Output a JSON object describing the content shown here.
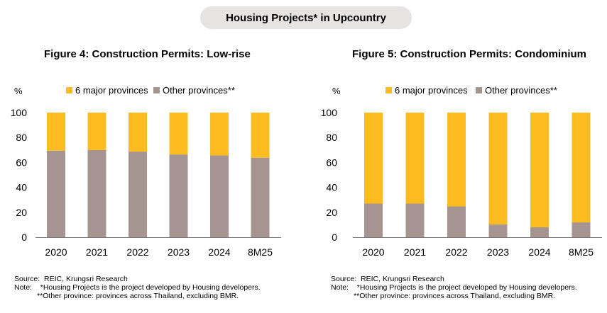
{
  "banner": "Housing Projects* in Upcountry",
  "chart_data": [
    {
      "type": "bar",
      "stacked": true,
      "title": "Figure 4: Construction Permits: Low-rise",
      "ylabel": "%",
      "ylim": [
        0,
        100
      ],
      "yticks": [
        "0",
        "20",
        "40",
        "60",
        "80",
        "100"
      ],
      "categories": [
        "2020",
        "2021",
        "2022",
        "2023",
        "2024",
        "8M25"
      ],
      "legend_position": "top",
      "series": [
        {
          "name": "6 major provinces",
          "color": "#fcbc1f",
          "values": [
            30.5,
            30,
            31.3,
            33.6,
            34.3,
            36.2
          ]
        },
        {
          "name": "Other provinces**",
          "color": "#a69490",
          "values": [
            69.5,
            70,
            68.7,
            66.4,
            65.7,
            63.8
          ]
        }
      ],
      "source": "Source:  REIC, Krungsri Research",
      "note1": "Note:    *Housing Projects is the project developed by Housing developers.",
      "note2": "           **Other province: provinces across Thailand, excluding BMR."
    },
    {
      "type": "bar",
      "stacked": true,
      "title": "Figure 5: Construction Permits: Condominium",
      "ylabel": "%",
      "ylim": [
        0,
        100
      ],
      "yticks": [
        "0",
        "20",
        "40",
        "60",
        "80",
        "100"
      ],
      "categories": [
        "2020",
        "2021",
        "2022",
        "2023",
        "2024",
        "8M25"
      ],
      "legend_position": "top",
      "series": [
        {
          "name": "6 major provinces",
          "color": "#fcbc1f",
          "values": [
            73,
            73,
            75.3,
            89.7,
            92,
            88.1
          ]
        },
        {
          "name": "Other provinces**",
          "color": "#a69490",
          "values": [
            27,
            27,
            24.7,
            10.3,
            8,
            11.9
          ]
        }
      ],
      "source": "Source:  REIC, Krungsri Research",
      "note1": "Note:    *Housing Projects is the project developed by Housing developers.",
      "note2": "           **Other province: provinces across Thailand, excluding BMR."
    }
  ]
}
